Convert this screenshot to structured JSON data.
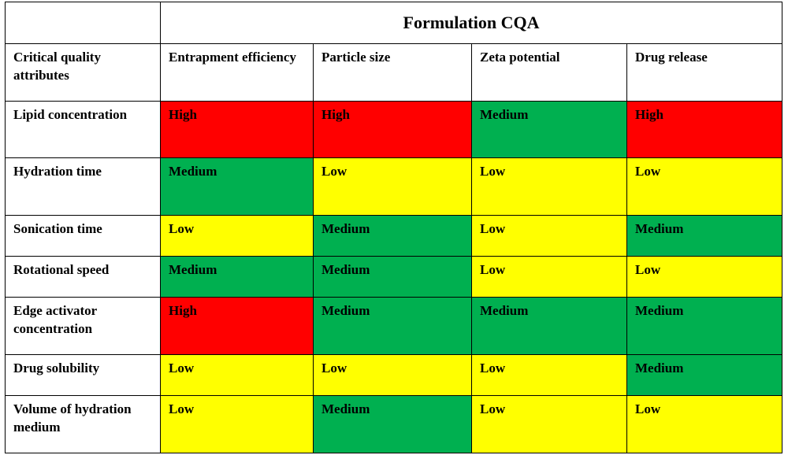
{
  "table": {
    "title": "Formulation CQA",
    "row_header_label": "Critical quality attributes",
    "columns": [
      "Entrapment efficiency",
      "Particle size",
      "Zeta potential",
      "Drug release"
    ],
    "colors": {
      "High": "#ff0000",
      "Medium": "#00b050",
      "Low": "#ffff00"
    },
    "rows": [
      {
        "label": "Lipid concentration",
        "cells": [
          "High",
          "High",
          "Medium",
          "High"
        ]
      },
      {
        "label": "Hydration time",
        "cells": [
          "Medium",
          "Low",
          "Low",
          "Low"
        ]
      },
      {
        "label": "Sonication time",
        "cells": [
          "Low",
          "Medium",
          "Low",
          "Medium"
        ]
      },
      {
        "label": "Rotational speed",
        "cells": [
          "Medium",
          "Medium",
          "Low",
          "Low"
        ]
      },
      {
        "label": "Edge activator concentration",
        "cells": [
          "High",
          "Medium",
          "Medium",
          "Medium"
        ]
      },
      {
        "label": "Drug solubility",
        "cells": [
          "Low",
          "Low",
          "Low",
          "Medium"
        ]
      },
      {
        "label": "Volume of hydration medium",
        "cells": [
          "Low",
          "Medium",
          "Low",
          "Low"
        ]
      }
    ]
  }
}
